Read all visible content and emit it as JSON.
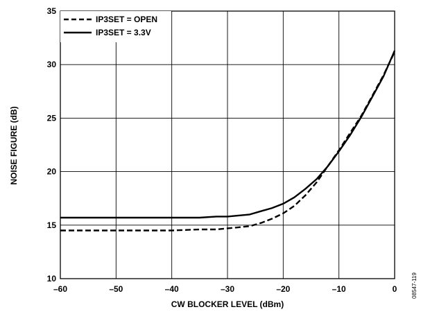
{
  "chart_data": {
    "type": "line",
    "title": "",
    "xlabel": "CW BLOCKER LEVEL (dBm)",
    "ylabel": "NOISE FIGURE (dB)",
    "xlim": [
      -60,
      0
    ],
    "ylim": [
      10,
      35
    ],
    "x_ticks": [
      -60,
      -50,
      -40,
      -30,
      -20,
      -10,
      0
    ],
    "y_ticks": [
      10,
      15,
      20,
      25,
      30,
      35
    ],
    "x_tick_labels": [
      "–60",
      "–50",
      "–40",
      "–30",
      "–20",
      "–10",
      "0"
    ],
    "y_tick_labels": [
      "10",
      "15",
      "20",
      "25",
      "30",
      "35"
    ],
    "grid": true,
    "legend_position": "top-left",
    "figure_id": "08547-119",
    "series": [
      {
        "name": "IP3SET = OPEN",
        "style": "dashed",
        "color": "#000000",
        "x": [
          -60,
          -55,
          -50,
          -45,
          -40,
          -35,
          -32,
          -30,
          -28,
          -26,
          -24,
          -22,
          -20,
          -18,
          -16,
          -14,
          -12,
          -10,
          -8,
          -6,
          -4,
          -2,
          0
        ],
        "y": [
          14.5,
          14.5,
          14.5,
          14.5,
          14.5,
          14.6,
          14.6,
          14.7,
          14.8,
          14.9,
          15.2,
          15.6,
          16.1,
          16.8,
          17.8,
          19.0,
          20.5,
          22.0,
          23.6,
          25.2,
          27.1,
          29.0,
          31.2
        ]
      },
      {
        "name": "IP3SET = 3.3V",
        "style": "solid",
        "color": "#000000",
        "x": [
          -60,
          -55,
          -50,
          -45,
          -40,
          -35,
          -32,
          -30,
          -28,
          -26,
          -24,
          -22,
          -20,
          -18,
          -16,
          -14,
          -12,
          -10,
          -8,
          -6,
          -4,
          -2,
          0
        ],
        "y": [
          15.7,
          15.7,
          15.7,
          15.7,
          15.7,
          15.7,
          15.8,
          15.8,
          15.9,
          16.0,
          16.3,
          16.6,
          17.0,
          17.6,
          18.4,
          19.3,
          20.5,
          21.9,
          23.4,
          25.1,
          27.0,
          28.9,
          31.3
        ]
      }
    ]
  }
}
